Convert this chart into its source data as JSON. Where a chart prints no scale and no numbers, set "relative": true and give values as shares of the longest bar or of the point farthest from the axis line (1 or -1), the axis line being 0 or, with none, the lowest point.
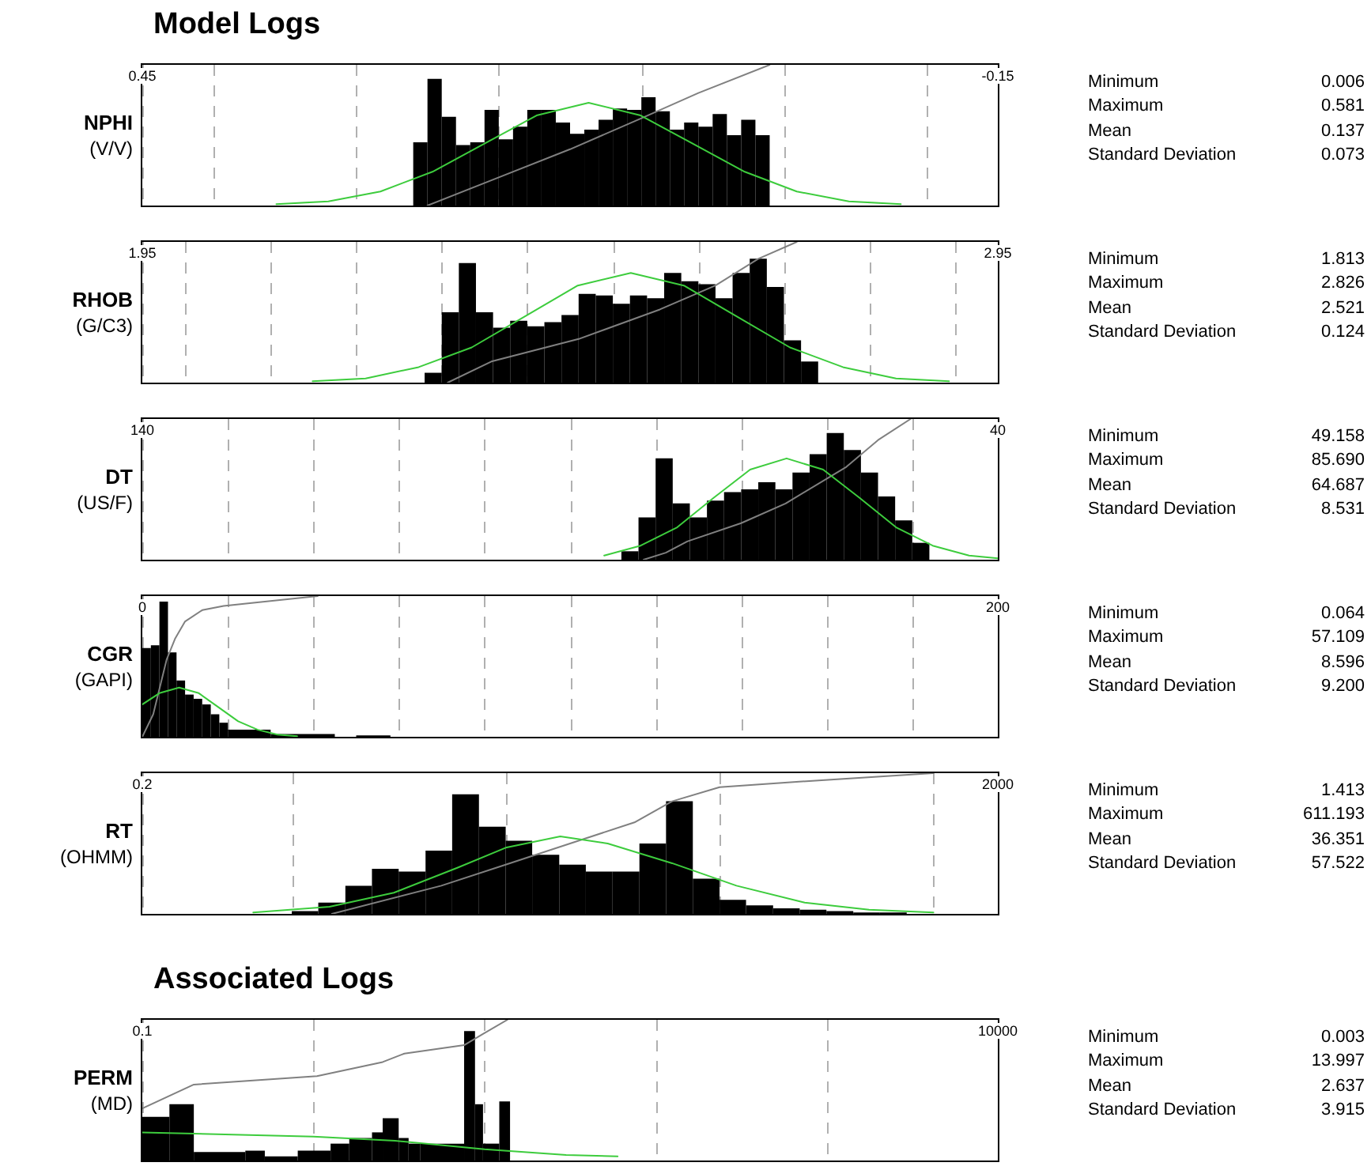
{
  "chart_data": [
    {
      "type": "histogram",
      "title": "Model Logs",
      "ylabel": "NPHI (V/V)",
      "relative": true,
      "xlim": [
        0.45,
        -0.15
      ],
      "log": false,
      "grid": "x",
      "tick_labels": "x",
      "xticks": [
        0.45,
        {
          "value": 0.4,
          "label": null
        },
        {
          "value": 0.3,
          "label": null
        },
        {
          "value": 0.2,
          "label": null
        },
        {
          "value": 0.1,
          "label": null
        },
        {
          "value": 0,
          "label": null
        },
        {
          "value": -0.1,
          "label": null
        },
        -0.15
      ],
      "series": [
        {
          "type": "histogram",
          "color": "#000000",
          "bins": [
            0.01,
            0.02,
            0.03,
            0.04,
            0.05,
            0.06,
            0.07,
            0.08,
            0.09,
            0.1,
            0.11,
            0.12,
            0.13,
            0.14,
            0.15,
            0.16,
            0.17,
            0.18,
            0.19,
            0.2,
            0.21,
            0.22,
            0.23,
            0.24,
            0.25,
            0.26
          ],
          "values": [
            0.5,
            0.61,
            0.5,
            0.65,
            0.56,
            0.59,
            0.54,
            0.67,
            0.77,
            0.68,
            0.69,
            0.61,
            0.54,
            0.51,
            0.59,
            0.68,
            0.68,
            0.56,
            0.47,
            0.68,
            0.45,
            0.43,
            0.63,
            0.9,
            0.45
          ]
        },
        {
          "type": "line",
          "color": "#3dcc3d",
          "x": [
            0.356,
            0.3195,
            0.283,
            0.2465,
            0.21,
            0.1735,
            0.137,
            0.1005,
            0.064,
            0.0275,
            -0.009,
            -0.0455,
            -0.082
          ],
          "values": [
            0.01,
            0.03,
            0.1,
            0.24,
            0.44,
            0.64,
            0.73,
            0.64,
            0.44,
            0.24,
            0.1,
            0.03,
            0.01
          ]
        },
        {
          "type": "line",
          "color": "#808080",
          "x": [
            0.25,
            0.2,
            0.15,
            0.1,
            0.06,
            0.01
          ],
          "values": [
            0,
            0.2,
            0.4,
            0.62,
            0.8,
            1
          ]
        }
      ],
      "annotations": [
        "Minimum",
        "0.006",
        "Maximum",
        "0.581",
        "Mean",
        "0.137",
        "Standard Deviation",
        "0.073"
      ]
    },
    {
      "type": "histogram",
      "ylabel": "RHOB (G/C3)",
      "relative": true,
      "xlim": [
        1.95,
        2.95
      ],
      "grid": "x",
      "tick_labels": "x",
      "xticks": [
        1.95,
        {
          "value": 2,
          "label": null
        },
        {
          "value": 2.1,
          "label": null
        },
        {
          "value": 2.2,
          "label": null
        },
        {
          "value": 2.3,
          "label": null
        },
        {
          "value": 2.4,
          "label": null
        },
        {
          "value": 2.5,
          "label": null
        },
        {
          "value": 2.6,
          "label": null
        },
        {
          "value": 2.7,
          "label": null
        },
        {
          "value": 2.8,
          "label": null
        },
        {
          "value": 2.9,
          "label": null
        },
        2.95
      ],
      "series": [
        {
          "type": "histogram",
          "color": "#000000",
          "bins": [
            2.28,
            2.3,
            2.32,
            2.34,
            2.36,
            2.38,
            2.4,
            2.42,
            2.44,
            2.46,
            2.48,
            2.5,
            2.52,
            2.54,
            2.56,
            2.58,
            2.6,
            2.62,
            2.64,
            2.66,
            2.68,
            2.7,
            2.72,
            2.74
          ],
          "values": [
            0.07,
            0.5,
            0.85,
            0.5,
            0.39,
            0.44,
            0.4,
            0.43,
            0.48,
            0.63,
            0.62,
            0.56,
            0.62,
            0.6,
            0.78,
            0.72,
            0.7,
            0.6,
            0.78,
            0.88,
            0.68,
            0.3,
            0.15
          ]
        },
        {
          "type": "line",
          "color": "#3dcc3d",
          "x": [
            2.149,
            2.211,
            2.273,
            2.335,
            2.397,
            2.459,
            2.521,
            2.583,
            2.645,
            2.707,
            2.769,
            2.831,
            2.893
          ],
          "values": [
            0.01,
            0.03,
            0.11,
            0.25,
            0.47,
            0.69,
            0.78,
            0.69,
            0.47,
            0.25,
            0.11,
            0.03,
            0.01
          ]
        },
        {
          "type": "line",
          "color": "#808080",
          "x": [
            2.307,
            2.358,
            2.46,
            2.555,
            2.62,
            2.67,
            2.715
          ],
          "values": [
            0,
            0.15,
            0.31,
            0.52,
            0.69,
            0.88,
            1
          ]
        }
      ],
      "annotations": [
        "Minimum",
        "1.813",
        "Maximum",
        "2.826",
        "Mean",
        "2.521",
        "Standard Deviation",
        "0.124"
      ]
    },
    {
      "type": "histogram",
      "ylabel": "DT (US/F)",
      "relative": true,
      "xlim": [
        140,
        40
      ],
      "grid": "x",
      "tick_labels": "x",
      "xticks": [
        140,
        {
          "value": 130,
          "label": null
        },
        {
          "value": 120,
          "label": null
        },
        {
          "value": 110,
          "label": null
        },
        {
          "value": 100,
          "label": null
        },
        {
          "value": 90,
          "label": null
        },
        {
          "value": 80,
          "label": null
        },
        {
          "value": 70,
          "label": null
        },
        {
          "value": 60,
          "label": null
        },
        {
          "value": 50,
          "label": null
        },
        40
      ],
      "series": [
        {
          "type": "histogram",
          "color": "#000000",
          "bins": [
            48,
            50,
            52,
            54,
            56,
            58,
            60,
            62,
            64,
            66,
            68,
            70,
            72,
            74,
            76,
            78,
            80,
            82,
            84
          ],
          "values": [
            0.12,
            0.28,
            0.45,
            0.62,
            0.78,
            0.9,
            0.75,
            0.62,
            0.5,
            0.55,
            0.5,
            0.48,
            0.42,
            0.3,
            0.4,
            0.72,
            0.3,
            0.06
          ]
        },
        {
          "type": "line",
          "color": "#3dcc3d",
          "x": [
            86.01,
            81.75,
            77.48,
            73.22,
            68.95,
            64.69,
            60.42,
            56.16,
            51.89,
            47.62,
            43.36,
            40
          ],
          "values": [
            0.03,
            0.1,
            0.23,
            0.44,
            0.64,
            0.72,
            0.64,
            0.44,
            0.23,
            0.1,
            0.03,
            0.01
          ]
        },
        {
          "type": "line",
          "color": "#808080",
          "x": [
            81.4,
            78.8,
            76.3,
            70,
            64.8,
            57.7,
            54,
            50.2
          ],
          "values": [
            0,
            0.05,
            0.13,
            0.26,
            0.4,
            0.66,
            0.85,
            1
          ]
        }
      ],
      "annotations": [
        "Minimum",
        "49.158",
        "Maximum",
        "85.690",
        "Mean",
        "64.687",
        "Standard Deviation",
        "8.531"
      ]
    },
    {
      "type": "histogram",
      "ylabel": "CGR (GAPI)",
      "relative": true,
      "xlim": [
        0,
        200
      ],
      "grid": "x",
      "tick_labels": "x",
      "xticks": [
        0,
        {
          "value": 20,
          "label": null
        },
        {
          "value": 40,
          "label": null
        },
        {
          "value": 60,
          "label": null
        },
        {
          "value": 80,
          "label": null
        },
        {
          "value": 100,
          "label": null
        },
        {
          "value": 120,
          "label": null
        },
        {
          "value": 140,
          "label": null
        },
        {
          "value": 160,
          "label": null
        },
        {
          "value": 180,
          "label": null
        },
        200
      ],
      "series": [
        {
          "type": "histogram",
          "color": "#000000",
          "bins": [
            0,
            2,
            4,
            6,
            8,
            10,
            12,
            14,
            16,
            18,
            20,
            30,
            45,
            50,
            58
          ],
          "values": [
            0.63,
            0.65,
            0.96,
            0.6,
            0.4,
            0.3,
            0.27,
            0.23,
            0.16,
            0.1,
            0.05,
            0.02,
            0,
            0.01
          ]
        },
        {
          "type": "line",
          "color": "#3dcc3d",
          "x": [
            0,
            4,
            8.6,
            13.2,
            17.8,
            22.4,
            27,
            31.6,
            36.2
          ],
          "values": [
            0.23,
            0.31,
            0.35,
            0.31,
            0.21,
            0.11,
            0.05,
            0.015,
            0.004
          ]
        },
        {
          "type": "line",
          "color": "#808080",
          "x": [
            0,
            2.55,
            5.7,
            7.7,
            10,
            14,
            19,
            41
          ],
          "values": [
            0,
            0.16,
            0.55,
            0.7,
            0.82,
            0.9,
            0.93,
            1
          ]
        }
      ],
      "annotations": [
        "Minimum",
        "0.064",
        "Maximum",
        "57.109",
        "Mean",
        "8.596",
        "Standard Deviation",
        "9.200"
      ]
    },
    {
      "type": "histogram",
      "ylabel": "RT (OHMM)",
      "relative": true,
      "xlim": [
        0.2,
        2000
      ],
      "log": "x",
      "grid": "x",
      "tick_labels": "x",
      "xticks": [
        0.2,
        {
          "value": 1,
          "label": null
        },
        {
          "value": 10,
          "label": null
        },
        {
          "value": 100,
          "label": null
        },
        {
          "value": 1000,
          "label": null
        },
        2000
      ],
      "series": [
        {
          "type": "histogram",
          "color": "#000000",
          "bins": [
            1,
            1.33,
            1.78,
            2.37,
            3.16,
            4.22,
            5.62,
            7.5,
            10,
            13.3,
            17.8,
            23.7,
            31.6,
            42.2,
            56.2,
            75,
            100,
            133,
            178,
            237,
            316,
            422,
            562,
            750
          ],
          "values": [
            0.02,
            0.08,
            0.2,
            0.32,
            0.3,
            0.45,
            0.85,
            0.62,
            0.52,
            0.42,
            0.35,
            0.3,
            0.3,
            0.5,
            0.8,
            0.25,
            0.1,
            0.06,
            0.04,
            0.03,
            0.02,
            0.01,
            0.01
          ]
        },
        {
          "type": "line",
          "color": "#3dcc3d",
          "x": [
            0.66,
            1.5,
            3,
            6,
            10,
            18,
            30,
            60,
            120,
            250,
            500,
            1000
          ],
          "values": [
            0.01,
            0.05,
            0.15,
            0.33,
            0.47,
            0.55,
            0.5,
            0.36,
            0.2,
            0.08,
            0.03,
            0.01
          ]
        },
        {
          "type": "line",
          "color": "#808080",
          "x": [
            1.54,
            5,
            10,
            20,
            40,
            60,
            100,
            300,
            1000
          ],
          "values": [
            0,
            0.2,
            0.35,
            0.5,
            0.65,
            0.8,
            0.9,
            0.95,
            1
          ]
        }
      ],
      "annotations": [
        "Minimum",
        "1.413",
        "Maximum",
        "611.193",
        "Mean",
        "36.351",
        "Standard Deviation",
        "57.522"
      ]
    },
    {
      "type": "histogram",
      "title": "Associated Logs",
      "ylabel": "PERM (MD)",
      "relative": true,
      "xlim": [
        0.1,
        10000
      ],
      "log": "x",
      "grid": "x",
      "tick_labels": "x",
      "xticks": [
        0.1,
        {
          "value": 1,
          "label": null
        },
        {
          "value": 10,
          "label": null
        },
        {
          "value": 100,
          "label": null
        },
        {
          "value": 1000,
          "label": null
        },
        10000
      ],
      "series": [
        {
          "type": "histogram",
          "color": "#000000",
          "bins": [
            0.1,
            0.144,
            0.2,
            0.4,
            0.52,
            0.81,
            1.26,
            1.62,
            2.2,
            2.54,
            3.15,
            3.6,
            4.2,
            7.6,
            8.8,
            9.8,
            12.2,
            14.1
          ],
          "values": [
            0.31,
            0.4,
            0.06,
            0.07,
            0.03,
            0.07,
            0.12,
            0.16,
            0.2,
            0.3,
            0.16,
            0.12,
            0.12,
            0.92,
            0.4,
            0.12,
            0.42
          ]
        },
        {
          "type": "line",
          "color": "#3dcc3d",
          "x": [
            0.1,
            1,
            3,
            10,
            30,
            60
          ],
          "values": [
            0.2,
            0.17,
            0.14,
            0.08,
            0.04,
            0.03
          ]
        },
        {
          "type": "line",
          "color": "#808080",
          "x": [
            0.1,
            0.2,
            1.05,
            2.54,
            3.4,
            7.6,
            9.8,
            13.6
          ],
          "values": [
            0.37,
            0.54,
            0.6,
            0.7,
            0.76,
            0.82,
            0.9,
            1
          ]
        }
      ],
      "annotations": [
        "Minimum",
        "0.003",
        "Maximum",
        "13.997",
        "Mean",
        "2.637",
        "Standard Deviation",
        "3.915"
      ]
    }
  ]
}
